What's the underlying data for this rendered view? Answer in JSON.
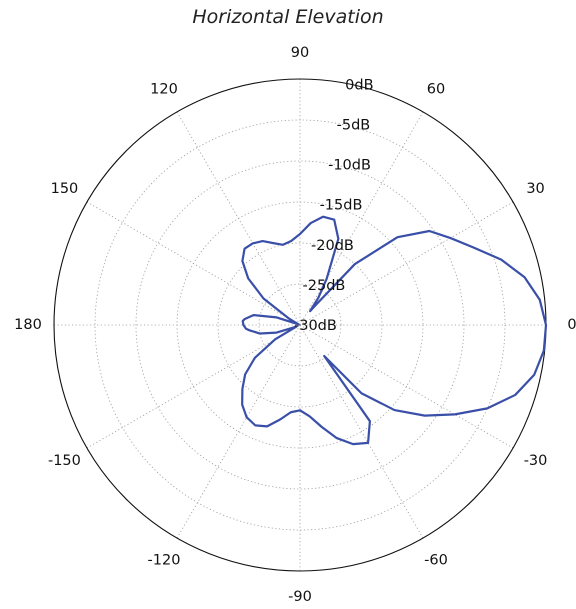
{
  "chart_data": {
    "type": "polar-line",
    "title": "Horizontal Elevation",
    "angle_unit": "degrees",
    "angular_ticks": [
      {
        "deg": 0,
        "label": "0"
      },
      {
        "deg": 30,
        "label": "30"
      },
      {
        "deg": 60,
        "label": "60"
      },
      {
        "deg": 90,
        "label": "90"
      },
      {
        "deg": 120,
        "label": "120"
      },
      {
        "deg": 150,
        "label": "150"
      },
      {
        "deg": 180,
        "label": "180"
      },
      {
        "deg": -150,
        "label": "-150"
      },
      {
        "deg": -120,
        "label": "-120"
      },
      {
        "deg": -90,
        "label": "-90"
      },
      {
        "deg": -60,
        "label": "-60"
      },
      {
        "deg": -30,
        "label": "-30"
      }
    ],
    "radial_ticks": [
      {
        "value": 0,
        "label": "0dB"
      },
      {
        "value": -5,
        "label": "-5dB"
      },
      {
        "value": -10,
        "label": "-10dB"
      },
      {
        "value": -15,
        "label": "-15dB"
      },
      {
        "value": -20,
        "label": "-20dB"
      },
      {
        "value": -25,
        "label": "-25dB"
      },
      {
        "value": -30,
        "label": "-30dB"
      }
    ],
    "r_range": [
      -30,
      0
    ],
    "grid": true,
    "line_color": "#3a4fa8",
    "series": [
      {
        "angle_deg": [
          0,
          6,
          12,
          18,
          24,
          30,
          36,
          42,
          48,
          52,
          54,
          56,
          60,
          66,
          72,
          78,
          84,
          90,
          96,
          102,
          108,
          114,
          120,
          126,
          132,
          138,
          144,
          150,
          156,
          162,
          168,
          174,
          176,
          180,
          -176,
          -174,
          -168,
          -162,
          -156,
          -150,
          -144,
          -138,
          -132,
          -126,
          -120,
          -114,
          -108,
          -102,
          -96,
          -90,
          -84,
          -78,
          -72,
          -66,
          -60,
          -54,
          -52,
          -48,
          -42,
          -36,
          -30,
          -24,
          -18,
          -12,
          -6
        ],
        "gain_db": [
          0,
          -0.6,
          -2.0,
          -4.2,
          -6.8,
          -8.8,
          -10.5,
          -14.0,
          -20.0,
          -27.0,
          -27.9,
          -26.0,
          -23.5,
          -18.5,
          -16.5,
          -16.5,
          -17.5,
          -18.9,
          -19.7,
          -20.0,
          -19.5,
          -18.8,
          -18.5,
          -18.5,
          -19.5,
          -21.5,
          -24.5,
          -28.5,
          -29.8,
          -27.0,
          -24.2,
          -23.2,
          -23.0,
          -23.1,
          -23.4,
          -23.8,
          -25.0,
          -27.0,
          -29.5,
          -26.5,
          -23.2,
          -21.0,
          -19.5,
          -18.0,
          -17.0,
          -16.6,
          -17.0,
          -18.2,
          -19.3,
          -19.6,
          -18.8,
          -17.3,
          -15.5,
          -14.1,
          -13.4,
          -15.5,
          -25.2,
          -18.8,
          -14.5,
          -11.2,
          -8.2,
          -5.0,
          -2.4,
          -0.8,
          -0.1
        ]
      }
    ]
  }
}
